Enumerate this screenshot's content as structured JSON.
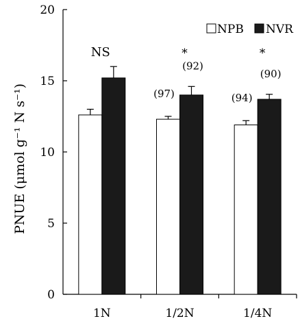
{
  "chart_data": {
    "type": "bar",
    "categories": [
      "1N",
      "1/2N",
      "1/4N"
    ],
    "series": [
      {
        "name": "NPB",
        "values": [
          12.6,
          12.3,
          11.9
        ],
        "errors": [
          0.4,
          0.2,
          0.3
        ],
        "color": "#ffffff",
        "labels": [
          "",
          "(97)",
          "(94)"
        ]
      },
      {
        "name": "NVR",
        "values": [
          15.2,
          14.0,
          13.7
        ],
        "errors": [
          0.8,
          0.6,
          0.35
        ],
        "color": "#1a1a1a",
        "labels": [
          "",
          "(92)",
          "(90)"
        ]
      }
    ],
    "significance": [
      "NS",
      "*",
      "*"
    ],
    "ylabel": "PNUE (μmol g⁻¹ N s⁻¹)",
    "yticks": [
      "0",
      "5",
      "10",
      "15",
      "20"
    ],
    "ylim": [
      0,
      20
    ],
    "legend_position": "top-right"
  }
}
